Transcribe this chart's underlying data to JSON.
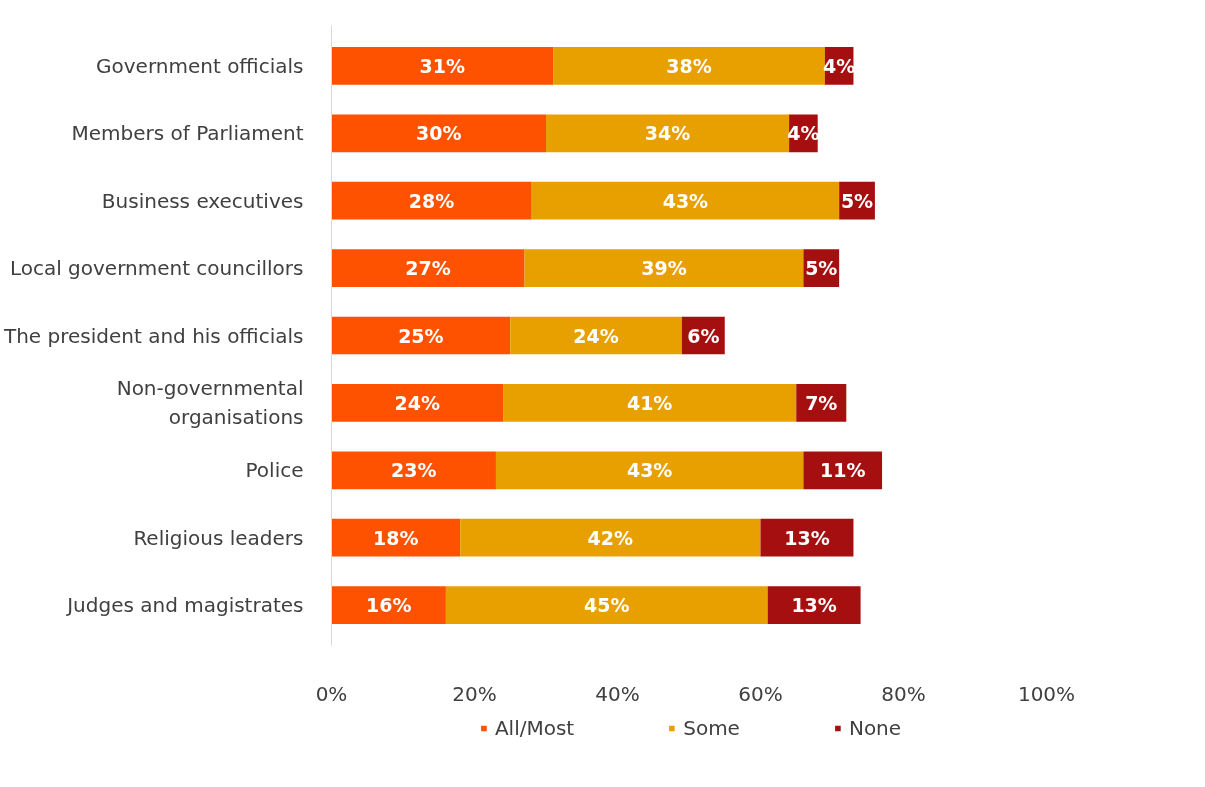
{
  "chart_data": {
    "type": "bar",
    "orientation": "horizontal",
    "stacked": true,
    "grid": false,
    "legend": "bottom",
    "categories": [
      "Government officials",
      "Members of Parliament",
      "Business executives",
      "Local government councillors",
      "The president and his officials",
      "Non-governmental\norganisations",
      "Police",
      "Religious leaders",
      "Judges and magistrates"
    ],
    "series": [
      {
        "name": "All/Most",
        "color": "#ff5200",
        "values": [
          31,
          30,
          28,
          27,
          25,
          24,
          23,
          18,
          16
        ],
        "value_labels": [
          "31%",
          "30%",
          "28%",
          "27%",
          "25%",
          "24%",
          "23%",
          "18%",
          "16%"
        ]
      },
      {
        "name": "Some",
        "color": "#e8a000",
        "values": [
          38,
          34,
          43,
          39,
          24,
          41,
          43,
          42,
          45
        ],
        "value_labels": [
          "38%",
          "34%",
          "43%",
          "39%",
          "24%",
          "41%",
          "43%",
          "42%",
          "45%"
        ]
      },
      {
        "name": "None",
        "color": "#a50f0f",
        "values": [
          4,
          4,
          5,
          5,
          6,
          7,
          11,
          13,
          13
        ],
        "value_labels": [
          "4%",
          "4%",
          "5%",
          "5%",
          "6%",
          "7%",
          "11%",
          "13%",
          "13%"
        ]
      }
    ],
    "xlim": [
      0,
      100
    ],
    "xticks": [
      {
        "value": 0,
        "label": "0%"
      },
      {
        "value": 20,
        "label": "20%"
      },
      {
        "value": 40,
        "label": "40%"
      },
      {
        "value": 60,
        "label": "60%"
      },
      {
        "value": 80,
        "label": "80%"
      },
      {
        "value": 100,
        "label": "100%"
      }
    ]
  }
}
